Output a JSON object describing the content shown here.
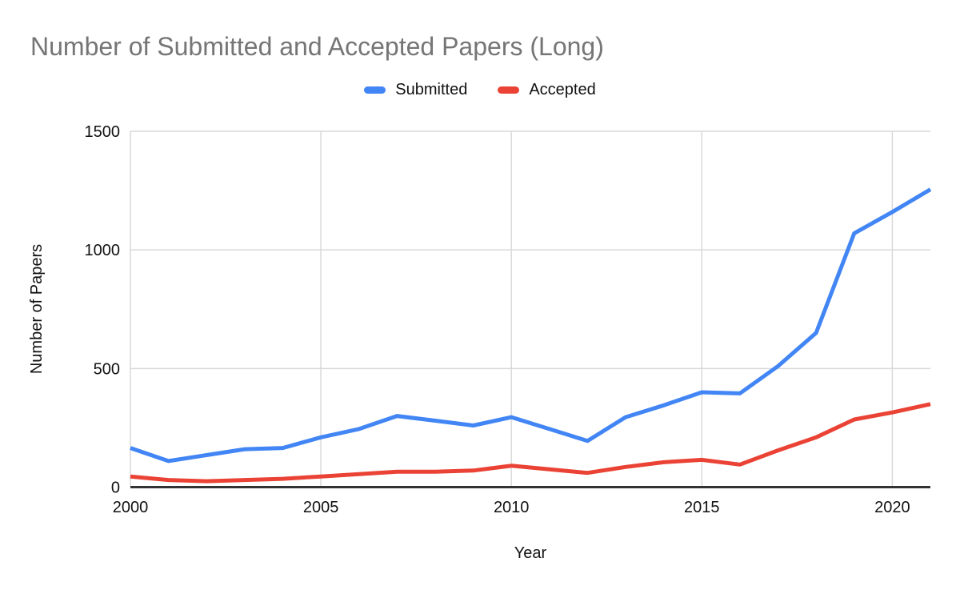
{
  "title": "Number of Submitted and Accepted Papers (Long)",
  "legend": [
    {
      "label": "Submitted",
      "color": "#4285f4"
    },
    {
      "label": "Accepted",
      "color": "#ea4335"
    }
  ],
  "colors": {
    "title_text": "#757575",
    "axis_line": "#333333",
    "gridline": "#d9d9d9",
    "tick_text": "#111111",
    "submitted_line": "#4285f4",
    "accepted_line": "#ea4335"
  },
  "chart_data": {
    "type": "line",
    "title": "Number of Submitted and Accepted Papers (Long)",
    "xlabel": "Year",
    "ylabel": "Number of Papers",
    "x": [
      2000,
      2001,
      2002,
      2003,
      2004,
      2005,
      2006,
      2007,
      2008,
      2009,
      2010,
      2011,
      2012,
      2013,
      2014,
      2015,
      2016,
      2017,
      2018,
      2019,
      2020,
      2021
    ],
    "series": [
      {
        "name": "Submitted",
        "color": "#4285f4",
        "values": [
          165,
          110,
          135,
          160,
          165,
          210,
          245,
          300,
          280,
          260,
          295,
          245,
          195,
          295,
          345,
          400,
          395,
          510,
          650,
          1070,
          1160,
          1255
        ]
      },
      {
        "name": "Accepted",
        "color": "#ea4335",
        "values": [
          45,
          30,
          25,
          30,
          35,
          45,
          55,
          65,
          65,
          70,
          90,
          75,
          60,
          85,
          105,
          115,
          95,
          155,
          210,
          285,
          315,
          350
        ]
      }
    ],
    "xlim": [
      2000,
      2021
    ],
    "ylim": [
      0,
      1500
    ],
    "xticks": [
      2000,
      2005,
      2010,
      2015,
      2020
    ],
    "yticks": [
      0,
      500,
      1000,
      1500
    ],
    "grid": true,
    "legend_position": "top"
  }
}
